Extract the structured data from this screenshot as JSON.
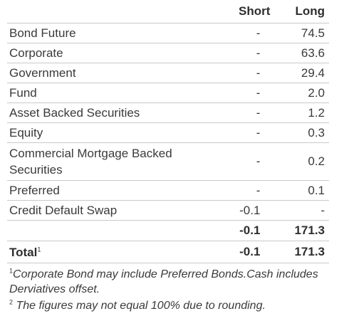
{
  "table": {
    "header_short": "Short",
    "header_long": "Long",
    "rows": [
      {
        "label": "Bond Future",
        "short": "-",
        "long": "74.5"
      },
      {
        "label": "Corporate",
        "short": "-",
        "long": "63.6"
      },
      {
        "label": "Government",
        "short": "-",
        "long": "29.4"
      },
      {
        "label": "Fund",
        "short": "-",
        "long": "2.0"
      },
      {
        "label": "Asset Backed Securities",
        "short": "-",
        "long": "1.2"
      },
      {
        "label": "Equity",
        "short": "-",
        "long": "0.3"
      },
      {
        "label": "Commercial Mortgage Backed Securities",
        "short": "-",
        "long": "0.2"
      },
      {
        "label": "Preferred",
        "short": "-",
        "long": "0.1"
      },
      {
        "label": "Credit Default Swap",
        "short": "-0.1",
        "long": "-"
      }
    ],
    "subtotal": {
      "short": "-0.1",
      "long": "171.3"
    },
    "total": {
      "label": "Total",
      "sup": "1",
      "short": "-0.1",
      "long": "171.3"
    }
  },
  "notes": [
    {
      "sup": "1",
      "text": "Corporate Bond may include Preferred Bonds.Cash includes Derviatives offset."
    },
    {
      "sup": "2",
      "text": " The figures may not equal 100% due to rounding."
    }
  ]
}
